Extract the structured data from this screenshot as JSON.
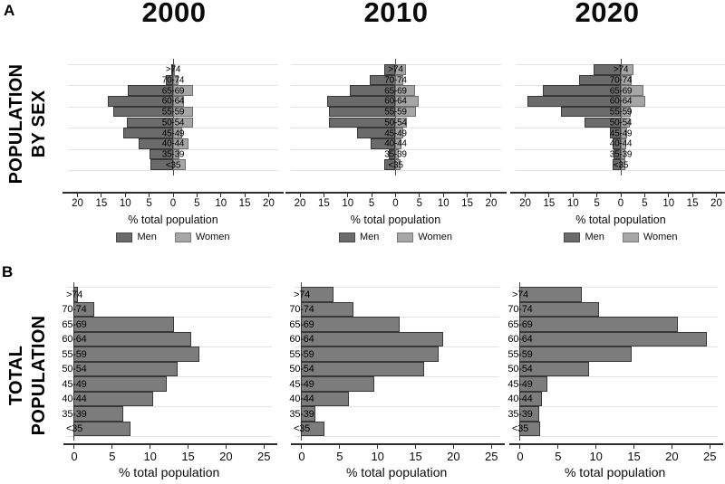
{
  "figure": {
    "panel_a": {
      "letter": "A",
      "title_line1": "POPULATION",
      "title_line2": "BY SEX"
    },
    "panel_b": {
      "letter": "B",
      "title_line1": "TOTAL",
      "title_line2": "POPULATION"
    },
    "column_titles": [
      "2000",
      "2010",
      "2020"
    ],
    "colors": {
      "men_fill": "#6b6b6b",
      "men_border": "#383838",
      "women_fill": "#a6a6a6",
      "women_border": "#6f6f6f",
      "total_fill": "#7c7c7c",
      "total_border": "#383838",
      "gridline": "#e3e3e3",
      "axis": "#2e2e2e"
    }
  },
  "chart_data": [
    {
      "type": "bar",
      "variant": "population-pyramid",
      "panel": "A",
      "year": "2000",
      "categories": [
        ">74",
        "70-74",
        "65-69",
        "60-64",
        "55-59",
        "50-54",
        "45-49",
        "40-44",
        "35-39",
        "<35"
      ],
      "series": [
        {
          "name": "Men",
          "values": [
            0.4,
            1.5,
            9.4,
            13.7,
            12.5,
            9.6,
            10.4,
            7.3,
            5.0,
            4.8
          ]
        },
        {
          "name": "Women",
          "values": [
            0.4,
            1.2,
            4.2,
            2.3,
            4.2,
            4.2,
            2.0,
            3.3,
            1.5,
            2.7
          ]
        }
      ],
      "xlabel": "% total population",
      "xticks": [
        20,
        15,
        10,
        5,
        0,
        5,
        10,
        15,
        20
      ],
      "xlim": [
        -22,
        22
      ],
      "legend": [
        "Men",
        "Women"
      ],
      "grid": true,
      "legend_position": "bottom"
    },
    {
      "type": "bar",
      "variant": "population-pyramid",
      "panel": "A",
      "year": "2010",
      "categories": [
        ">74",
        "70-74",
        "65-69",
        "60-64",
        "55-59",
        "50-54",
        "45-49",
        "40-44",
        "35-39",
        "<35"
      ],
      "series": [
        {
          "name": "Men",
          "values": [
            2.3,
            5.5,
            9.5,
            14.4,
            13.9,
            14.0,
            8.0,
            5.2,
            1.4,
            2.3
          ]
        },
        {
          "name": "Women",
          "values": [
            2.2,
            1.8,
            4.2,
            5.0,
            4.4,
            2.5,
            1.8,
            1.4,
            0.7,
            1.1
          ]
        }
      ],
      "xlabel": "% total population",
      "xticks": [
        20,
        15,
        10,
        5,
        0,
        5,
        10,
        15,
        20
      ],
      "xlim": [
        -22,
        22
      ],
      "legend": [
        "Men",
        "Women"
      ],
      "grid": true,
      "legend_position": "bottom"
    },
    {
      "type": "bar",
      "variant": "population-pyramid",
      "panel": "A",
      "year": "2020",
      "categories": [
        ">74",
        "70-74",
        "65-69",
        "60-64",
        "55-59",
        "50-54",
        "45-49",
        "40-44",
        "35-39",
        "<35"
      ],
      "series": [
        {
          "name": "Men",
          "values": [
            5.6,
            8.7,
            16.3,
            19.5,
            12.5,
            7.5,
            2.2,
            1.7,
            1.6,
            1.7
          ]
        },
        {
          "name": "Women",
          "values": [
            2.7,
            2.3,
            4.8,
            5.3,
            2.1,
            2.0,
            1.5,
            1.2,
            1.0,
            1.0
          ]
        }
      ],
      "xlabel": "% total population",
      "xticks": [
        20,
        15,
        10,
        5,
        0,
        5,
        10,
        15,
        20
      ],
      "xlim": [
        -22,
        22
      ],
      "legend": [
        "Men",
        "Women"
      ],
      "grid": true,
      "legend_position": "bottom"
    },
    {
      "type": "bar",
      "variant": "horizontal-bar",
      "panel": "B",
      "year": "2000",
      "categories": [
        ">74",
        "70-74",
        "65-69",
        "60-64",
        "55-59",
        "50-54",
        "45-49",
        "40-44",
        "35-39",
        "<35"
      ],
      "values": [
        0.5,
        2.7,
        13.2,
        15.5,
        16.5,
        13.7,
        12.2,
        10.4,
        6.5,
        7.5
      ],
      "xlabel": "% total population",
      "xticks": [
        0,
        5,
        10,
        15,
        20,
        25
      ],
      "xlim": [
        -1,
        26
      ],
      "grid": true
    },
    {
      "type": "bar",
      "variant": "horizontal-bar",
      "panel": "B",
      "year": "2010",
      "categories": [
        ">74",
        "70-74",
        "65-69",
        "60-64",
        "55-59",
        "50-54",
        "45-49",
        "40-44",
        "35-39",
        "<35"
      ],
      "values": [
        4.2,
        6.9,
        13.0,
        18.7,
        18.1,
        16.2,
        9.6,
        6.3,
        1.9,
        3.1
      ],
      "xlabel": "% total population",
      "xticks": [
        0,
        5,
        10,
        15,
        20,
        25
      ],
      "xlim": [
        -1,
        26
      ],
      "grid": true
    },
    {
      "type": "bar",
      "variant": "horizontal-bar",
      "panel": "B",
      "year": "2020",
      "categories": [
        ">74",
        "70-74",
        "65-69",
        "60-64",
        "55-59",
        "50-54",
        "45-49",
        "40-44",
        "35-39",
        "<35"
      ],
      "values": [
        8.2,
        10.5,
        20.9,
        24.7,
        14.7,
        9.2,
        3.7,
        2.9,
        2.6,
        2.7
      ],
      "xlabel": "% total population",
      "xticks": [
        0,
        5,
        10,
        15,
        20,
        25
      ],
      "xlim": [
        -1,
        26
      ],
      "grid": true
    }
  ]
}
